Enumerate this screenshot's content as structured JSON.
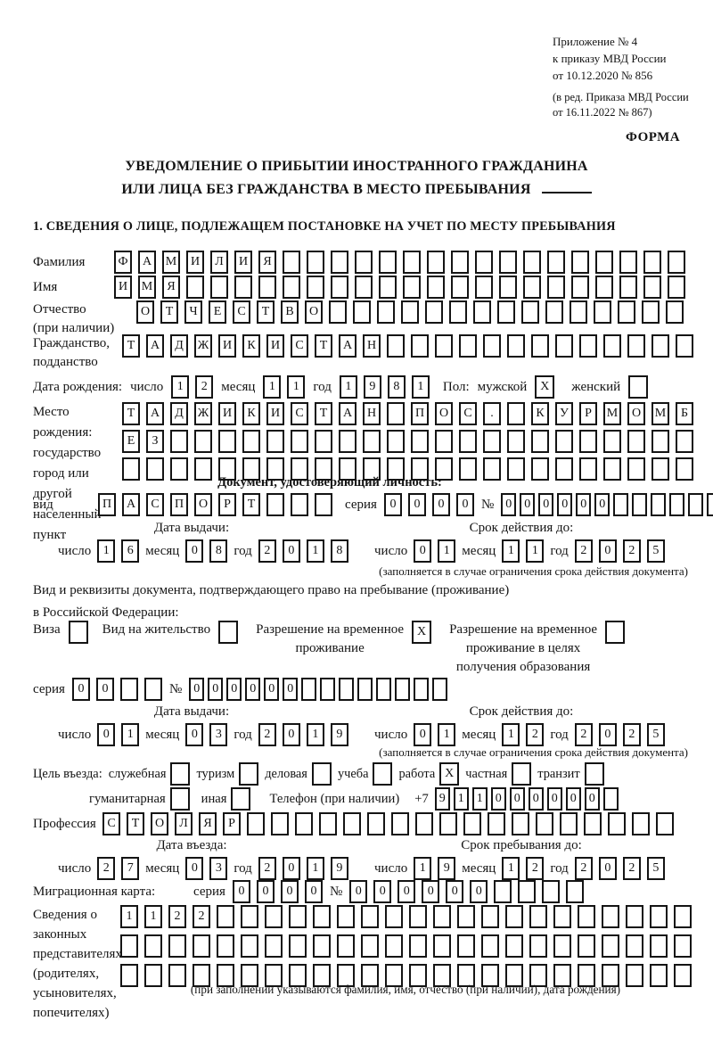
{
  "ink": "#141414",
  "paper": "#ffffff",
  "words": {
    "day": "число",
    "month": "месяц",
    "year": "год",
    "series": "серия",
    "number": "№"
  },
  "header": {
    "annex_lines": [
      "Приложение № 4",
      "к приказу МВД России",
      "от 10.12.2020 № 856"
    ],
    "annex_note_lines": [
      "(в ред. Приказа МВД России",
      "от 16.11.2022 № 867)"
    ],
    "form_label": "ФОРМА"
  },
  "title": {
    "line1": "УВЕДОМЛЕНИЕ О ПРИБЫТИИ ИНОСТРАННОГО ГРАЖДАНИНА",
    "line2": "ИЛИ ЛИЦА БЕЗ ГРАЖДАНСТВА В МЕСТО ПРЕБЫВАНИЯ"
  },
  "section1": {
    "heading": "1. СВЕДЕНИЯ О ЛИЦЕ, ПОДЛЕЖАЩЕМ ПОСТАНОВКЕ НА УЧЕТ ПО МЕСТУ ПРЕБЫВАНИЯ",
    "surname": {
      "label": "Фамилия",
      "value": "ФАМИЛИЯ",
      "cells": 24
    },
    "given_name": {
      "label": "Имя",
      "value": "ИМЯ",
      "cells": 24
    },
    "patronymic": {
      "label": "Отчество",
      "label2": "(при наличии)",
      "value": "ОТЧЕСТВО",
      "cells": 23
    },
    "citizenship": {
      "label": "Гражданство,",
      "label2": "подданство",
      "value": "ТАДЖИКИСТАН",
      "cells": 24
    },
    "birth_date": {
      "label": "Дата рождения:",
      "day": "12",
      "month": "11",
      "year": "1981"
    },
    "sex": {
      "label": "Пол:",
      "male_label": "мужской",
      "male": "X",
      "female_label": "женский",
      "female": ""
    },
    "birth_place": {
      "labels": [
        "Место рождения:",
        "государство",
        "город или другой",
        "населенный пункт"
      ],
      "rows": [
        {
          "value": "ТАДЖИКИСТАН ПОС. КУРМОМБ",
          "cells": 24
        },
        {
          "value": "ЕЗ",
          "cells": 24
        },
        {
          "value": "",
          "cells": 24
        }
      ]
    },
    "identity_doc": {
      "heading": "Документ, удостоверяющий личность:",
      "kind_label": "вид",
      "kind": {
        "value": "ПАСПОРТ",
        "cells": 10
      },
      "series": {
        "value": "0000",
        "cells": 4
      },
      "number": {
        "value": "000000",
        "cells": 12
      },
      "issue": {
        "heading": "Дата выдачи:",
        "day": "16",
        "month": "08",
        "year": "2018"
      },
      "valid": {
        "heading": "Срок действия до:",
        "day": "01",
        "month": "11",
        "year": "2025"
      },
      "note": "(заполняется в случае ограничения срока действия документа)"
    },
    "residence_doc": {
      "intro_line1": "Вид и реквизиты документа, подтверждающего право на пребывание (проживание)",
      "intro_line2": "в Российской Федерации:",
      "options": [
        {
          "label": "Виза",
          "checked": ""
        },
        {
          "label": "Вид на жительство",
          "checked": ""
        },
        {
          "label": "Разрешение на временное\nпроживание",
          "checked": "X"
        },
        {
          "label": "Разрешение на временное\nпроживание в целях\nполучения образования",
          "checked": ""
        }
      ],
      "series": {
        "value": "00",
        "cells": 4
      },
      "number": {
        "value": "000000",
        "cells": 14
      },
      "issue": {
        "heading": "Дата выдачи:",
        "day": "01",
        "month": "03",
        "year": "2019"
      },
      "valid": {
        "heading": "Срок действия до:",
        "day": "01",
        "month": "12",
        "year": "2025"
      },
      "note": "(заполняется в случае ограничения срока действия документа)"
    },
    "visit": {
      "purpose_label": "Цель въезда:",
      "purposes": [
        {
          "label": "служебная",
          "checked": ""
        },
        {
          "label": "туризм",
          "checked": ""
        },
        {
          "label": "деловая",
          "checked": ""
        },
        {
          "label": "учеба",
          "checked": ""
        },
        {
          "label": "работа",
          "checked": "X"
        },
        {
          "label": "частная",
          "checked": ""
        },
        {
          "label": "транзит",
          "checked": ""
        },
        {
          "label": "гуманитарная",
          "checked": ""
        },
        {
          "label": "иная",
          "checked": ""
        }
      ],
      "phone": {
        "label": "Телефон (при наличии)",
        "prefix": "+7",
        "value": "911000000",
        "cells": 10
      },
      "profession": {
        "label": "Профессия",
        "value": "СТОЛЯР",
        "cells": 24
      },
      "entry_date": {
        "heading": "Дата въезда:",
        "day": "27",
        "month": "03",
        "year": "2019"
      },
      "stay_until": {
        "heading": "Срок пребывания до:",
        "day": "19",
        "month": "12",
        "year": "2025"
      },
      "migration_card": {
        "label": "Миграционная карта:",
        "series": {
          "value": "0000",
          "cells": 4
        },
        "number": {
          "value": "000000",
          "cells": 10
        }
      }
    },
    "representatives": {
      "labels": [
        "Сведения о",
        "законных",
        "представителях",
        "(родителях,",
        "усыновителях,",
        "попечителях)"
      ],
      "rows": [
        {
          "value": "1122",
          "cells": 24
        },
        {
          "value": "",
          "cells": 24
        },
        {
          "value": "",
          "cells": 24
        }
      ],
      "note": "(при заполнении указываются фамилия, имя, отчество (при наличии), дата рождения)"
    }
  }
}
